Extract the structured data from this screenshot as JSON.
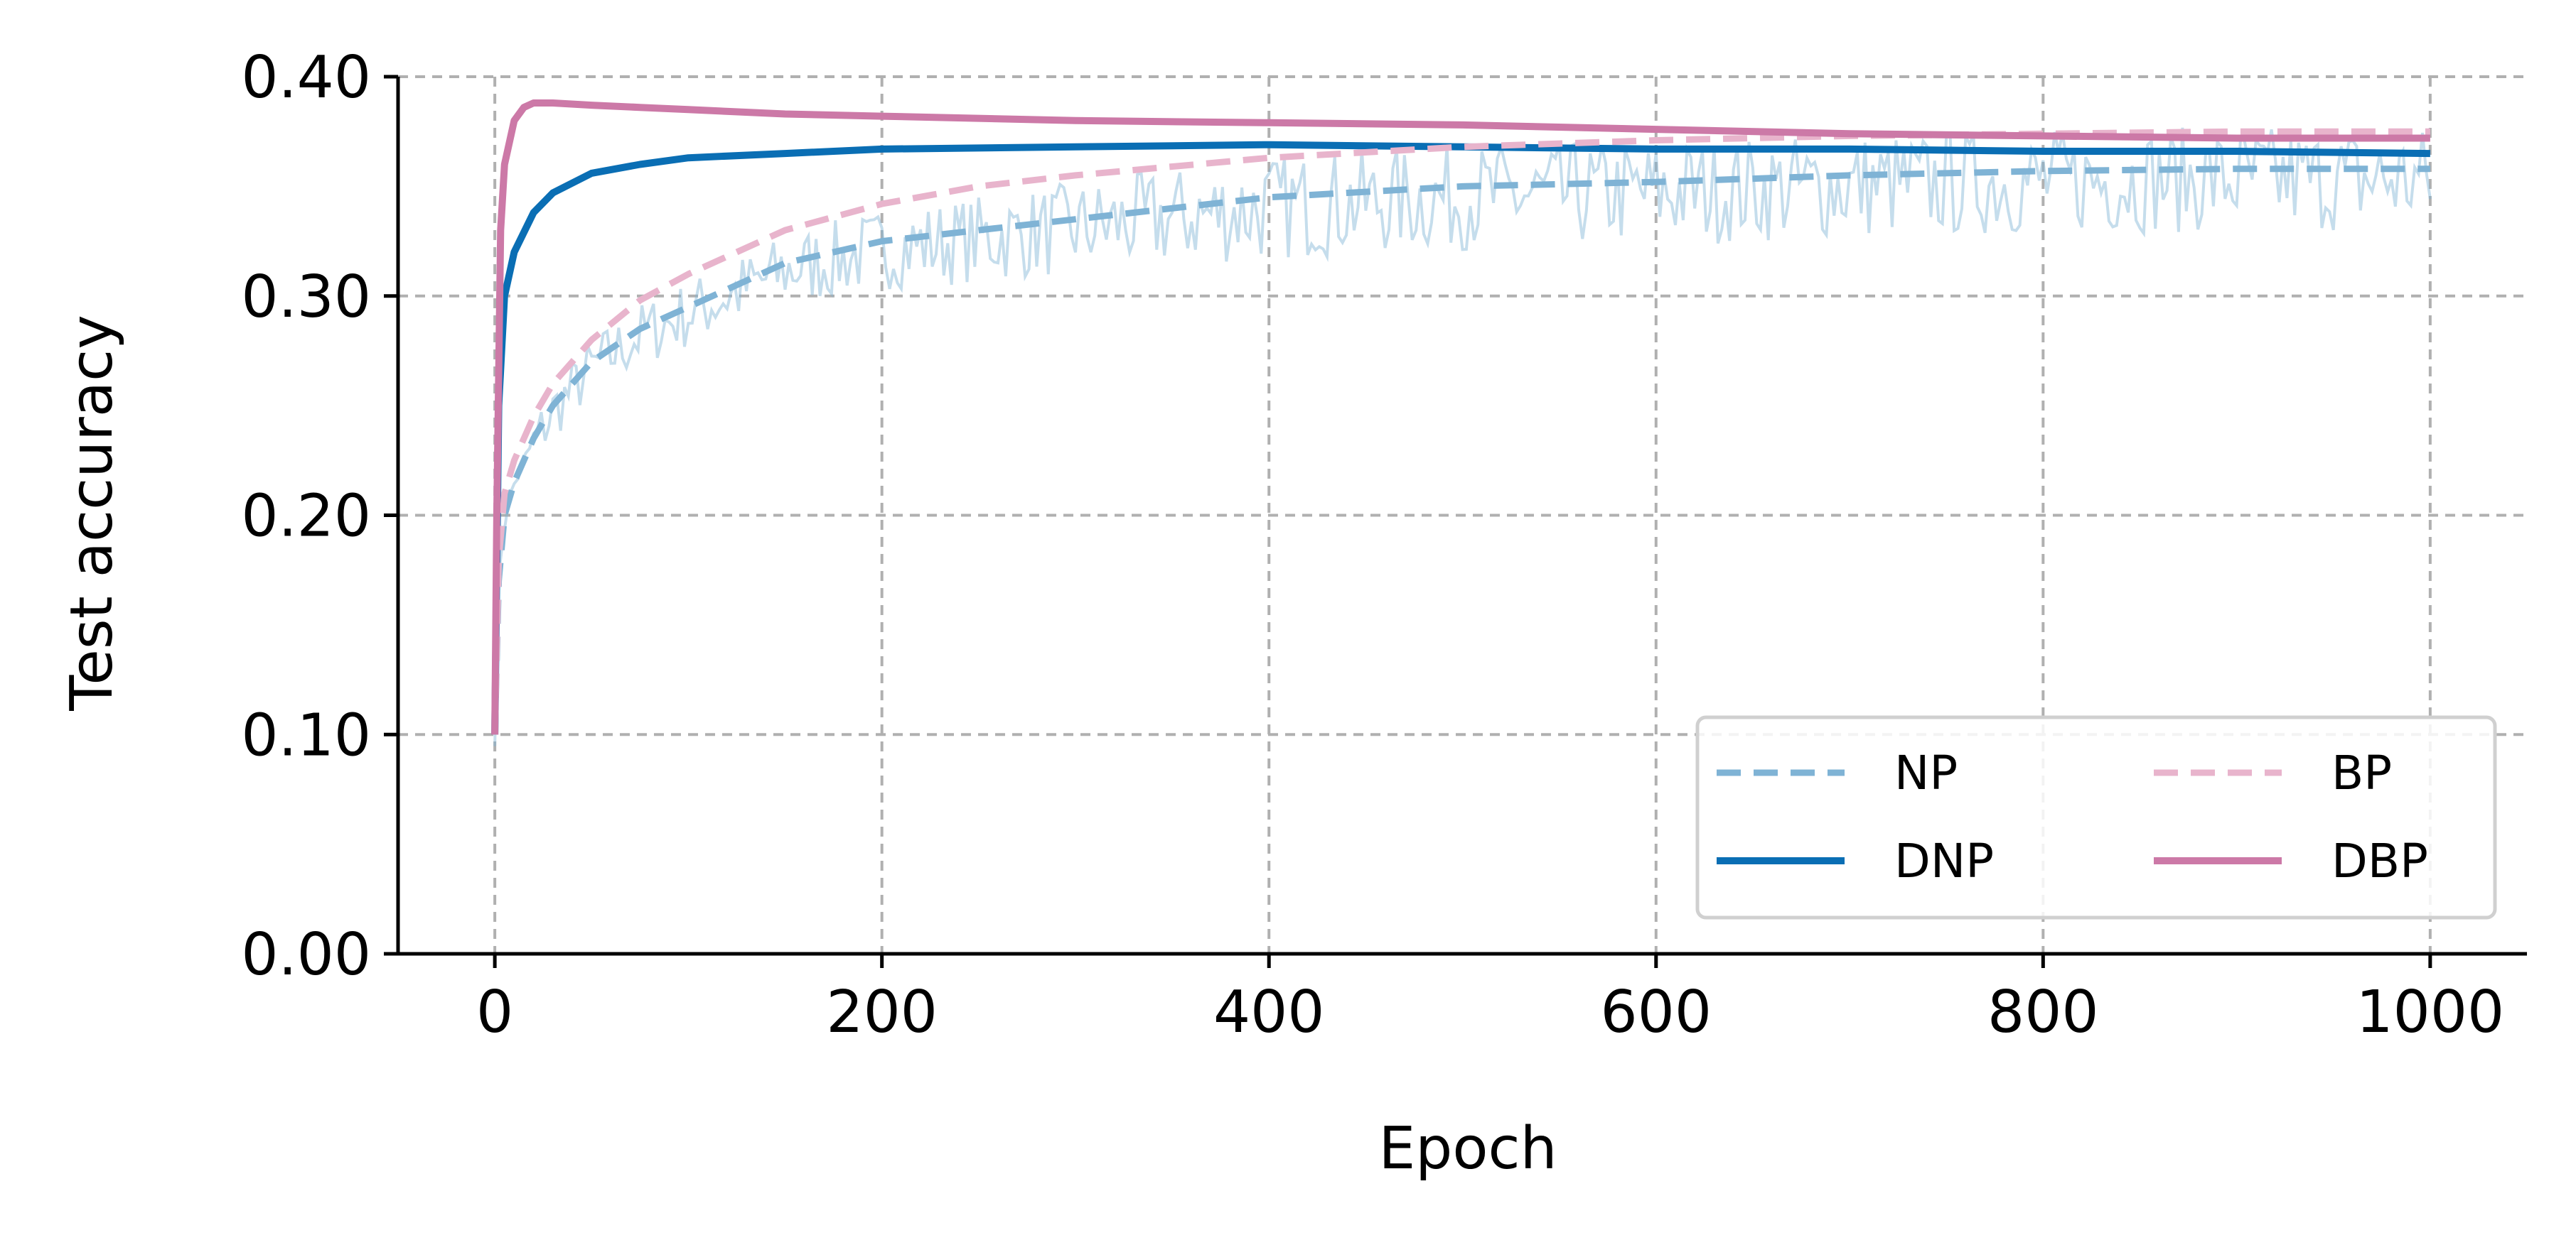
{
  "chart_data": {
    "type": "line",
    "title": "",
    "xlabel": "Epoch",
    "ylabel": "Test accuracy",
    "xlim": [
      -50,
      1050
    ],
    "ylim": [
      0.0,
      0.4
    ],
    "xticks": [
      0,
      200,
      400,
      600,
      800,
      1000
    ],
    "yticks": [
      0.0,
      0.1,
      0.2,
      0.3,
      0.4
    ],
    "xtick_labels": [
      "0",
      "200",
      "400",
      "600",
      "800",
      "1000"
    ],
    "ytick_labels": [
      "0.00",
      "0.10",
      "0.20",
      "0.30",
      "0.40"
    ],
    "grid": true,
    "legend_position": "lower-right",
    "legend_columns": 2,
    "series": [
      {
        "name": "NP",
        "style": "dashed",
        "color": "#7fb3d5",
        "noisy_band": true,
        "x": [
          0,
          2,
          5,
          10,
          20,
          30,
          50,
          75,
          100,
          150,
          200,
          250,
          300,
          400,
          500,
          600,
          700,
          800,
          900,
          1000
        ],
        "y": [
          0.1,
          0.17,
          0.2,
          0.215,
          0.235,
          0.25,
          0.27,
          0.285,
          0.295,
          0.315,
          0.325,
          0.33,
          0.335,
          0.345,
          0.35,
          0.352,
          0.355,
          0.357,
          0.358,
          0.358
        ]
      },
      {
        "name": "DNP",
        "style": "solid",
        "color": "#0a6eb4",
        "x": [
          0,
          2,
          5,
          10,
          20,
          30,
          50,
          75,
          100,
          150,
          200,
          300,
          400,
          500,
          600,
          700,
          800,
          900,
          1000
        ],
        "y": [
          0.1,
          0.25,
          0.3,
          0.32,
          0.338,
          0.347,
          0.356,
          0.36,
          0.363,
          0.365,
          0.367,
          0.368,
          0.369,
          0.368,
          0.367,
          0.367,
          0.366,
          0.366,
          0.365
        ]
      },
      {
        "name": "BP",
        "style": "dashed",
        "color": "#e8b4cc",
        "x": [
          0,
          2,
          5,
          10,
          20,
          30,
          50,
          75,
          100,
          150,
          200,
          250,
          300,
          400,
          500,
          600,
          700,
          800,
          900,
          1000
        ],
        "y": [
          0.1,
          0.18,
          0.21,
          0.225,
          0.245,
          0.26,
          0.28,
          0.298,
          0.31,
          0.33,
          0.342,
          0.35,
          0.355,
          0.363,
          0.368,
          0.371,
          0.373,
          0.374,
          0.375,
          0.375
        ]
      },
      {
        "name": "DBP",
        "style": "solid",
        "color": "#cc79a7",
        "x": [
          0,
          1,
          3,
          5,
          10,
          15,
          20,
          30,
          50,
          75,
          100,
          150,
          200,
          300,
          400,
          500,
          600,
          700,
          800,
          900,
          1000
        ],
        "y": [
          0.1,
          0.2,
          0.33,
          0.36,
          0.38,
          0.386,
          0.388,
          0.388,
          0.387,
          0.386,
          0.385,
          0.383,
          0.382,
          0.38,
          0.379,
          0.378,
          0.376,
          0.374,
          0.373,
          0.372,
          0.372
        ]
      }
    ]
  }
}
